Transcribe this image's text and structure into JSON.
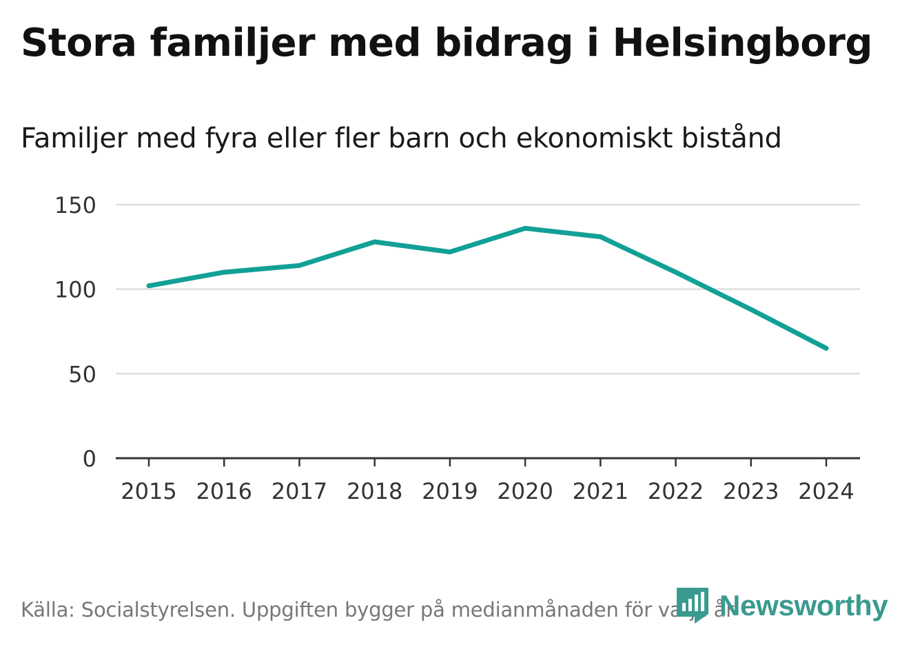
{
  "title": "Stora familjer med bidrag i Helsingborg",
  "subtitle": "Familjer med fyra eller fler barn och ekonomiskt bistånd",
  "source": "Källa: Socialstyrelsen. Uppgiften bygger på medianmånaden för varje år",
  "logo": {
    "text": "Newsworthy",
    "icon": "newsworthy-logo-icon",
    "color": "#3a9a8f"
  },
  "colors": {
    "line": "#12a096",
    "grid": "#dddddd",
    "axis": "#333333",
    "tick_text": "#333333"
  },
  "chart_data": {
    "type": "line",
    "title": "Stora familjer med bidrag i Helsingborg",
    "subtitle": "Familjer med fyra eller fler barn och ekonomiskt bistånd",
    "xlabel": "",
    "ylabel": "",
    "categories": [
      "2015",
      "2016",
      "2017",
      "2018",
      "2019",
      "2020",
      "2021",
      "2022",
      "2023",
      "2024"
    ],
    "series": [
      {
        "name": "Familjer med fyra eller fler barn och ekonomiskt bistånd",
        "values": [
          102,
          110,
          114,
          128,
          122,
          136,
          131,
          110,
          88,
          65
        ]
      }
    ],
    "ylim": [
      0,
      150
    ],
    "yticks": [
      0,
      50,
      100,
      150
    ],
    "grid": true,
    "legend": "none"
  }
}
